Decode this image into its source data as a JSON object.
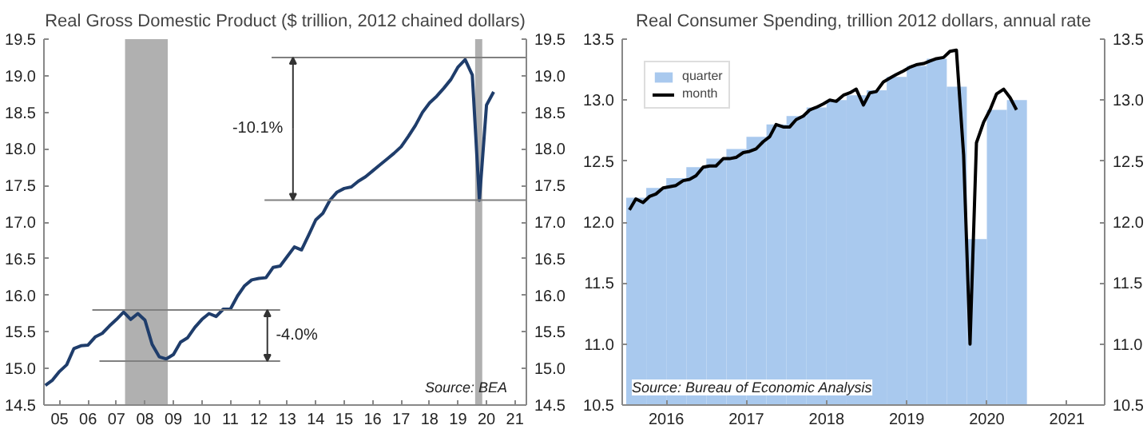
{
  "chart_data": [
    {
      "type": "line",
      "title": "Real Gross Domestic Product ($ trillion, 2012 chained dollars)",
      "xlim": [
        4.95,
        21.9
      ],
      "ylim": [
        14.5,
        19.5
      ],
      "y2lim": [
        14.5,
        19.5
      ],
      "xticks": [
        {
          "value": 5.5,
          "label": "05"
        },
        {
          "value": 6.5,
          "label": "06"
        },
        {
          "value": 7.5,
          "label": "07"
        },
        {
          "value": 8.5,
          "label": "08"
        },
        {
          "value": 9.5,
          "label": "09"
        },
        {
          "value": 10.5,
          "label": "10"
        },
        {
          "value": 11.5,
          "label": "11"
        },
        {
          "value": 12.5,
          "label": "12"
        },
        {
          "value": 13.5,
          "label": "13"
        },
        {
          "value": 14.5,
          "label": "14"
        },
        {
          "value": 15.5,
          "label": "15"
        },
        {
          "value": 16.5,
          "label": "16"
        },
        {
          "value": 17.5,
          "label": "17"
        },
        {
          "value": 18.5,
          "label": "18"
        },
        {
          "value": 19.5,
          "label": "19"
        },
        {
          "value": 20.5,
          "label": "20"
        },
        {
          "value": 21.5,
          "label": "21"
        }
      ],
      "yticks": [
        14.5,
        {
          "value": 15,
          "label": "15.0"
        },
        15.5,
        {
          "value": 16,
          "label": "16.0"
        },
        16.5,
        {
          "value": 17,
          "label": "17.0"
        },
        17.5,
        {
          "value": 18,
          "label": "18.0"
        },
        18.5,
        {
          "value": 19,
          "label": "19.0"
        },
        19.5
      ],
      "y2ticks": [
        14.5,
        {
          "value": 15,
          "label": "15.0"
        },
        15.5,
        {
          "value": 16,
          "label": "16.0"
        },
        16.5,
        {
          "value": 17,
          "label": "17.0"
        },
        17.5,
        {
          "value": 18,
          "label": "18.0"
        },
        18.5,
        {
          "value": 19,
          "label": "19.0"
        },
        19.5
      ],
      "grid": false,
      "legend": false,
      "bands": [
        {
          "axis": "x",
          "from": 7.8,
          "to": 9.3,
          "color": "#b0b0b0"
        },
        {
          "axis": "x",
          "from": 20.1,
          "to": 20.35,
          "color": "#b0b0b0"
        }
      ],
      "series": [
        {
          "color": "#1f3d6b",
          "x": [
            5,
            5.25,
            5.5,
            5.75,
            6,
            6.25,
            6.5,
            6.75,
            7,
            7.25,
            7.5,
            7.75,
            8,
            8.25,
            8.5,
            8.75,
            9,
            9.25,
            9.5,
            9.75,
            10,
            10.25,
            10.5,
            10.75,
            11,
            11.25,
            11.5,
            11.75,
            12,
            12.25,
            12.5,
            12.75,
            13,
            13.25,
            13.5,
            13.75,
            14,
            14.25,
            14.5,
            14.75,
            15,
            15.25,
            15.5,
            15.75,
            16,
            16.25,
            16.5,
            16.75,
            17,
            17.25,
            17.5,
            17.75,
            18,
            18.25,
            18.5,
            18.75,
            19,
            19.25,
            19.5,
            19.75,
            20,
            20.25,
            20.5,
            20.75
          ],
          "values": [
            14.77,
            14.84,
            14.96,
            15.05,
            15.27,
            15.31,
            15.32,
            15.43,
            15.48,
            15.58,
            15.67,
            15.77,
            15.67,
            15.75,
            15.66,
            15.33,
            15.16,
            15.13,
            15.19,
            15.36,
            15.42,
            15.56,
            15.67,
            15.75,
            15.71,
            15.81,
            15.81,
            15.99,
            16.13,
            16.21,
            16.23,
            16.24,
            16.38,
            16.4,
            16.53,
            16.66,
            16.62,
            16.82,
            17.03,
            17.12,
            17.3,
            17.41,
            17.46,
            17.48,
            17.56,
            17.62,
            17.7,
            17.78,
            17.86,
            17.94,
            18.03,
            18.17,
            18.32,
            18.5,
            18.63,
            18.72,
            18.83,
            18.95,
            19.12,
            19.22,
            19.01,
            17.3,
            18.6,
            18.78
          ]
        },
        {
          "color": "#808080",
          "x": [
            12.95,
            21.9
          ],
          "values": [
            19.25,
            19.25
          ]
        },
        {
          "color": "#808080",
          "x": [
            12.7,
            21.9
          ],
          "values": [
            17.3,
            17.3
          ]
        },
        {
          "color": "#808080",
          "x": [
            6.65,
            13.25
          ],
          "values": [
            15.8,
            15.8
          ]
        },
        {
          "color": "#808080",
          "x": [
            6.9,
            13.25
          ],
          "values": [
            15.1,
            15.1
          ]
        }
      ],
      "annotations": [
        {
          "text": "-10.1%",
          "x": 13.7,
          "y": 19.25
        },
        {
          "text": "-4.0%",
          "x": 12.8,
          "y": 15.8
        },
        "Source: BEA"
      ]
    },
    {
      "type": "bar",
      "title": "Real Consumer Spending, trillion 2012 dollars, annual rate",
      "xlim": [
        2015.95,
        2021.97
      ],
      "ylim": [
        10.5,
        13.5
      ],
      "y2lim": [
        10.5,
        13.5
      ],
      "xticks": [
        {
          "value": 2016.5,
          "label": "2016"
        },
        {
          "value": 2017.5,
          "label": "2017"
        },
        {
          "value": 2018.5,
          "label": "2018"
        },
        {
          "value": 2019.5,
          "label": "2019"
        },
        {
          "value": 2020.5,
          "label": "2020"
        },
        {
          "value": 2021.5,
          "label": "2021"
        }
      ],
      "yticks": [
        10.5,
        {
          "value": 11,
          "label": "11.0"
        },
        11.5,
        {
          "value": 12,
          "label": "12.0"
        },
        12.5,
        {
          "value": 13,
          "label": "13.0"
        },
        13.5
      ],
      "y2ticks": [
        10.5,
        {
          "value": 11,
          "label": "11.0"
        },
        11.5,
        {
          "value": 12,
          "label": "12.0"
        },
        12.5,
        {
          "value": 13,
          "label": "13.0"
        },
        13.5
      ],
      "grid": false,
      "legend": "top left",
      "series": [
        {
          "name": "quarter",
          "type": "bar",
          "color": "#a9c9ee",
          "x": [
            2016.125,
            2016.375,
            2016.625,
            2016.875,
            2017.125,
            2017.375,
            2017.625,
            2017.875,
            2018.125,
            2018.375,
            2018.625,
            2018.875,
            2019.125,
            2019.375,
            2019.625,
            2019.875,
            2020.125,
            2020.375,
            2020.625,
            2020.875
          ],
          "values": [
            12.2,
            12.28,
            12.36,
            12.45,
            12.52,
            12.6,
            12.7,
            12.8,
            12.87,
            12.94,
            13.0,
            13.04,
            13.08,
            13.19,
            13.28,
            13.34,
            13.11,
            11.86,
            12.92,
            13.0
          ]
        },
        {
          "name": "month",
          "type": "line",
          "color": "#000000",
          "x": [
            2016.04,
            2016.12,
            2016.21,
            2016.29,
            2016.37,
            2016.46,
            2016.54,
            2016.62,
            2016.71,
            2016.79,
            2016.87,
            2016.96,
            2017.04,
            2017.12,
            2017.21,
            2017.29,
            2017.37,
            2017.46,
            2017.54,
            2017.62,
            2017.71,
            2017.79,
            2017.87,
            2017.96,
            2018.04,
            2018.12,
            2018.21,
            2018.29,
            2018.37,
            2018.46,
            2018.54,
            2018.62,
            2018.71,
            2018.79,
            2018.87,
            2018.96,
            2019.04,
            2019.12,
            2019.21,
            2019.29,
            2019.37,
            2019.46,
            2019.54,
            2019.62,
            2019.71,
            2019.79,
            2019.87,
            2019.96,
            2020.04,
            2020.12,
            2020.21,
            2020.29,
            2020.37,
            2020.46,
            2020.54,
            2020.62,
            2020.71,
            2020.79,
            2020.87
          ],
          "values": [
            12.1,
            12.19,
            12.16,
            12.21,
            12.23,
            12.28,
            12.29,
            12.3,
            12.34,
            12.35,
            12.38,
            12.45,
            12.46,
            12.46,
            12.52,
            12.52,
            12.53,
            12.57,
            12.58,
            12.6,
            12.66,
            12.7,
            12.8,
            12.78,
            12.78,
            12.84,
            12.87,
            12.92,
            12.94,
            12.97,
            13.0,
            12.99,
            13.04,
            13.06,
            13.09,
            12.96,
            13.06,
            13.07,
            13.15,
            13.18,
            13.21,
            13.24,
            13.27,
            13.29,
            13.3,
            13.32,
            13.34,
            13.35,
            13.4,
            13.41,
            12.55,
            11.0,
            12.65,
            12.82,
            12.92,
            13.05,
            13.09,
            13.02,
            12.92
          ]
        }
      ],
      "annotations": [
        "Source: Bureau of Economic Analysis"
      ]
    }
  ]
}
